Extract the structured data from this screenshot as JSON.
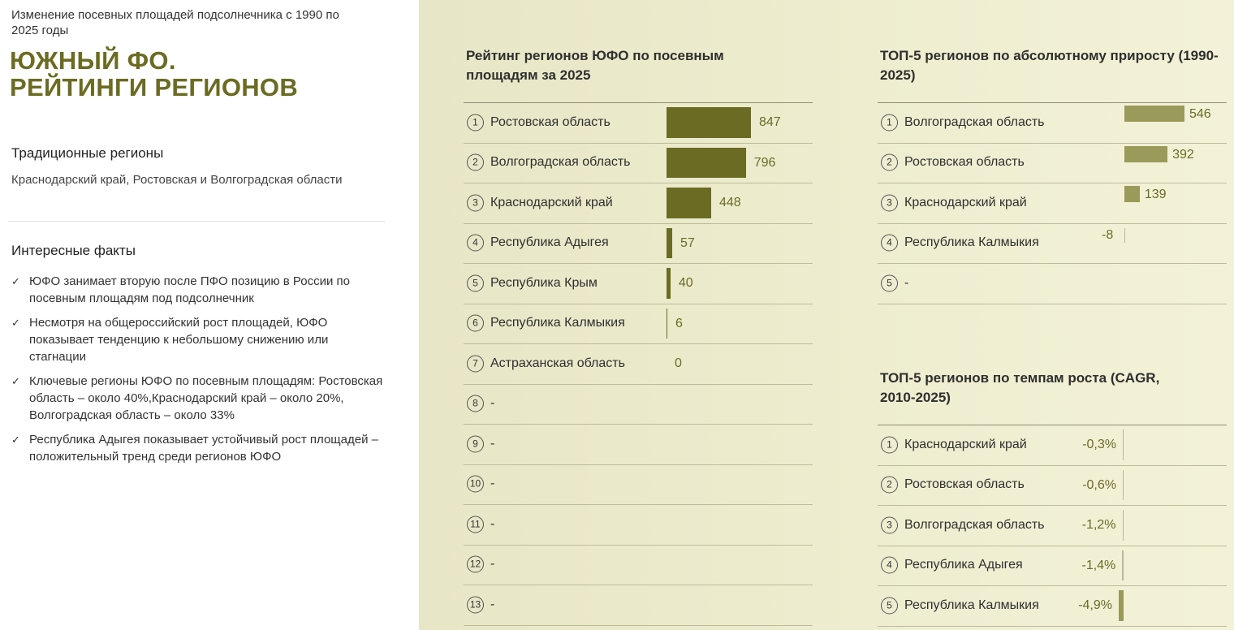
{
  "subtitle": "Изменение посевных площадей подсолнечника с 1990 по 2025 годы",
  "title_line1": "ЮЖНЫЙ ФО.",
  "title_line2": "РЕЙТИНГИ РЕГИОНОВ",
  "traditional": {
    "heading": "Традиционные регионы",
    "text": "Краснодарский край, Ростовская и Волгоградская области"
  },
  "facts": {
    "heading": "Интересные факты",
    "items": [
      "ЮФО занимает вторую после ПФО позицию в России по посевным площадям под подсолнечник",
      "Несмотря на общероссийский рост площадей, ЮФО показывает тенденцию к небольшому снижению или стагнации",
      "Ключевые регионы ЮФО по посевным площадям: Ростовская область – около 40%,Краснодарский край – около 20%, Волгоградская область – около 33%",
      "Республика Адыгея показывает устойчивый рост площадей – положительный тренд среди регионов ЮФО"
    ]
  },
  "colors": {
    "bar": "#6b6b24",
    "bar_light": "#9a9a5a",
    "accent_title": "#6b6b23",
    "panel_bg": "#eeedcf"
  },
  "chart_data": [
    {
      "type": "bar",
      "title": "Рейтинг регионов ЮФО по посевным площадям за 2025",
      "ranks": [
        "1",
        "2",
        "3",
        "4",
        "5",
        "6",
        "7",
        "8",
        "9",
        "10",
        "11",
        "12",
        "13"
      ],
      "categories": [
        "Ростовская область",
        "Волгоградская область",
        "Краснодарский край",
        "Республика Адыгея",
        "Республика Крым",
        "Республика Калмыкия",
        "Астраханская область",
        "-",
        "-",
        "-",
        "-",
        "-",
        "-"
      ],
      "values": [
        847,
        796,
        448,
        57,
        40,
        6,
        0,
        null,
        null,
        null,
        null,
        null,
        null
      ],
      "labels": [
        "847",
        "796",
        "448",
        "57",
        "40",
        "6",
        "0",
        "",
        "",
        "",
        "",
        "",
        ""
      ]
    },
    {
      "type": "bar",
      "title": "ТОП-5 регионов по абсолютному приросту (1990-2025)",
      "ranks": [
        "1",
        "2",
        "3",
        "4",
        "5"
      ],
      "categories": [
        "Волгоградская область",
        "Ростовская область",
        "Краснодарский край",
        "Республика Калмыкия",
        "-"
      ],
      "values": [
        546,
        392,
        139,
        -8,
        null
      ],
      "labels": [
        "546",
        "392",
        "139",
        "-8",
        ""
      ]
    },
    {
      "type": "bar",
      "title": "ТОП-5 регионов по темпам роста (CAGR, 2010-2025)",
      "ranks": [
        "1",
        "2",
        "3",
        "4",
        "5"
      ],
      "categories": [
        "Краснодарский край",
        "Ростовская область",
        "Волгоградская область",
        "Республика Адыгея",
        "Республика Калмыкия"
      ],
      "values": [
        -0.3,
        -0.6,
        -1.2,
        -1.4,
        -4.9
      ],
      "labels": [
        "-0,3%",
        "-0,6%",
        "-1,2%",
        "-1,4%",
        "-4,9%"
      ]
    }
  ]
}
